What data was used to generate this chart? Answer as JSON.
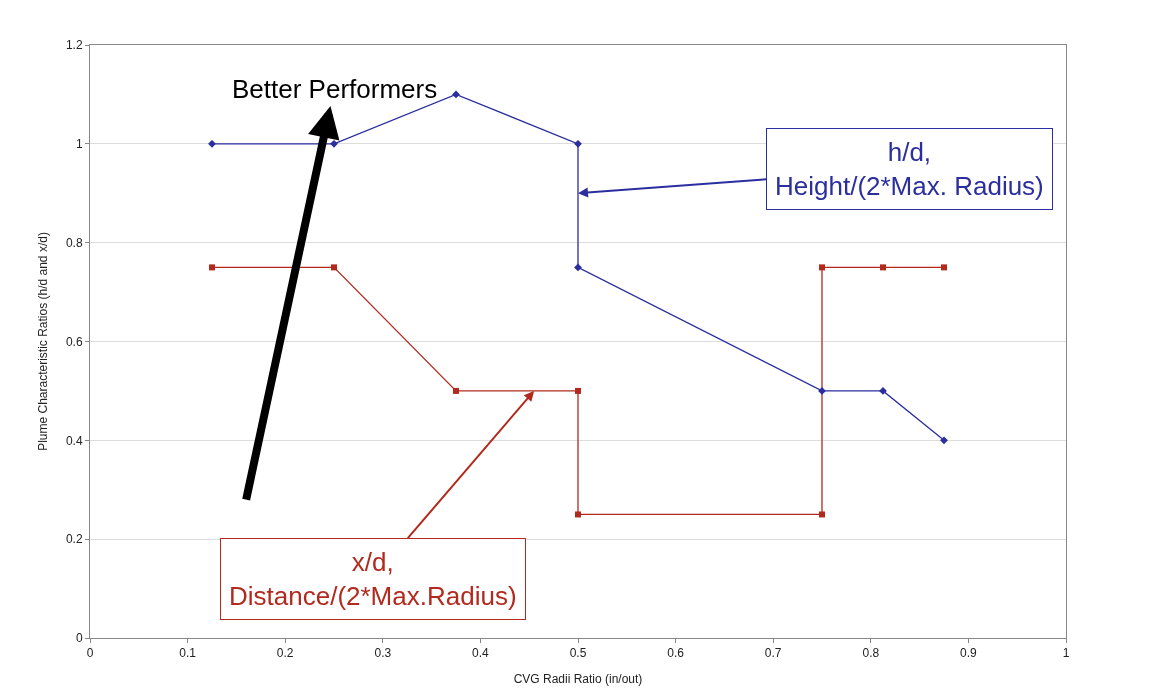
{
  "chart_data": {
    "type": "line",
    "xlabel": "CVG Radii Ratio (in/out)",
    "ylabel": "Plume Characteristic Ratios (h/d and x/d)",
    "xlim": [
      0,
      1
    ],
    "xticks": [
      0,
      0.1,
      0.2,
      0.3,
      0.4,
      0.5,
      0.6,
      0.7,
      0.8,
      0.9,
      1
    ],
    "ylim": [
      0,
      1.2
    ],
    "yticks": [
      0,
      0.2,
      0.4,
      0.6,
      0.8,
      1,
      1.2
    ],
    "grid": "y",
    "series": [
      {
        "color": "#2b2e9e",
        "marker": "diamond",
        "x": [
          0.125,
          0.25,
          0.375,
          0.5,
          0.5,
          0.75,
          0.8125,
          0.875
        ],
        "values": [
          1,
          1,
          1.1,
          1,
          0.75,
          0.5,
          0.5,
          0.4
        ]
      },
      {
        "color": "#b22a1e",
        "marker": "square",
        "x": [
          0.125,
          0.25,
          0.375,
          0.5,
          0.5,
          0.75,
          0.75,
          0.8125,
          0.875
        ],
        "values": [
          0.75,
          0.75,
          0.5,
          0.5,
          0.25,
          0.25,
          0.75,
          0.75,
          0.75
        ]
      }
    ],
    "annotations": [
      "Better Performers",
      {
        "text": "h/d,\nHeight/(2*Max. Radius)",
        "x": 0.5,
        "y": 0.9
      },
      {
        "text": "x/d,\nDistance/(2*Max.Radius)",
        "x": 0.455,
        "y": 0.5
      }
    ]
  }
}
